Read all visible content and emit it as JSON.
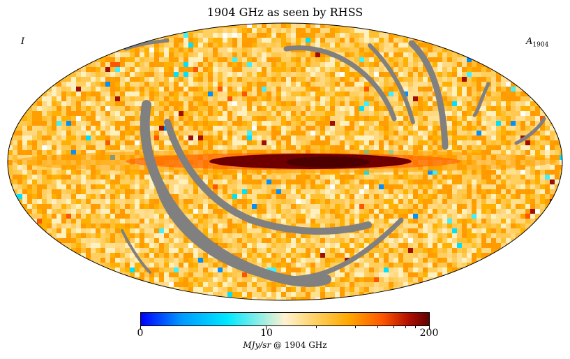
{
  "title": "1904 GHz as seen by RHSS",
  "stokes": "I",
  "band": {
    "symbol": "A",
    "subscript": "1904"
  },
  "colorbar": {
    "min_label": "0",
    "mid_label": "10",
    "max_label": "200",
    "unit": "MJy/sr",
    "unit_suffix": "@ 1904 GHz",
    "colors": [
      "#0000ff",
      "#0099ff",
      "#00e8ff",
      "#fff2d0",
      "#ffcc55",
      "#ffa800",
      "#ff5500",
      "#b01000",
      "#600000"
    ]
  },
  "mask_color": "#808080",
  "projection": "mollweide"
}
